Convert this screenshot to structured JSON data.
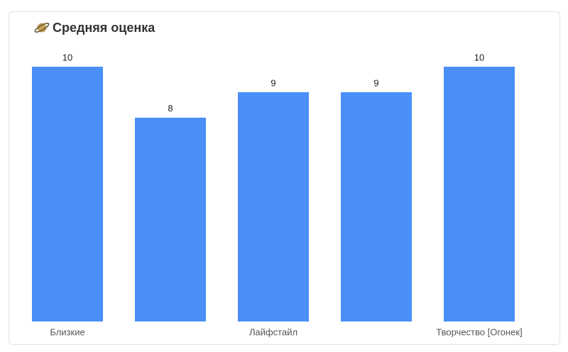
{
  "chart_data": {
    "type": "bar",
    "title": "Средняя оценка",
    "categories": [
      "Близкие",
      null,
      "Лайфстайл",
      null,
      "Творчество [Огонек]"
    ],
    "values": [
      10,
      8,
      9,
      9,
      10
    ],
    "color": "#4a8ff7"
  }
}
